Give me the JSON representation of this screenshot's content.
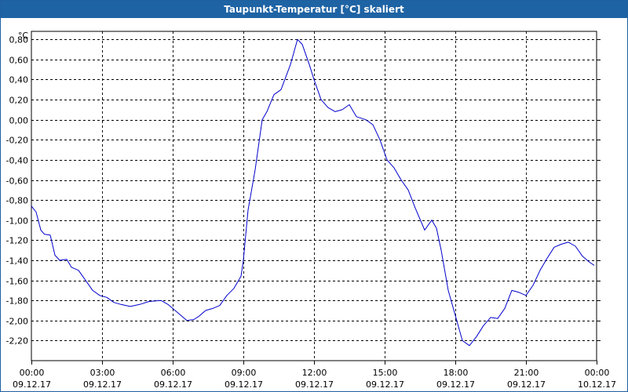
{
  "chart_data": {
    "type": "line",
    "title": "Taupunkt-Temperatur [°C] skaliert",
    "unit_label": "°C",
    "ylim": [
      -2.4,
      0.88
    ],
    "yticks": [
      0.8,
      0.6,
      0.4,
      0.2,
      0.0,
      -0.2,
      -0.4,
      -0.6,
      -0.8,
      -1.0,
      -1.2,
      -1.4,
      -1.6,
      -1.8,
      -2.0,
      -2.2
    ],
    "ytick_labels": [
      "0,80",
      "0,60",
      "0,40",
      "0,20",
      "0,00",
      "-0,20",
      "-0,40",
      "-0,60",
      "-0,80",
      "-1,00",
      "-1,20",
      "-1,40",
      "-1,60",
      "-1,80",
      "-2,00",
      "-2,20"
    ],
    "xlim": [
      0,
      24
    ],
    "xticks": [
      0,
      3,
      6,
      9,
      12,
      15,
      18,
      21,
      24
    ],
    "xtick_time_labels": [
      "00:00",
      "03:00",
      "06:00",
      "09:00",
      "12:00",
      "15:00",
      "18:00",
      "21:00",
      "00:00"
    ],
    "xtick_date_labels": [
      "09.12.17",
      "09.12.17",
      "09.12.17",
      "09.12.17",
      "09.12.17",
      "09.12.17",
      "09.12.17",
      "09.12.17",
      "10.12.17"
    ],
    "grid": true,
    "series": [
      {
        "color": "#0000cc",
        "x": [
          0,
          0.2,
          0.4,
          0.55,
          0.8,
          1.0,
          1.2,
          1.5,
          1.7,
          2.0,
          2.3,
          2.6,
          2.9,
          3.2,
          3.5,
          3.8,
          4.2,
          4.6,
          5.0,
          5.5,
          5.8,
          6.2,
          6.6,
          6.9,
          7.1,
          7.4,
          7.7,
          8.0,
          8.3,
          8.6,
          8.9,
          9.0,
          9.2,
          9.5,
          9.8,
          10.0,
          10.3,
          10.6,
          11.0,
          11.3,
          11.5,
          11.8,
          12.0,
          12.3,
          12.6,
          12.9,
          13.2,
          13.5,
          13.8,
          14.2,
          14.5,
          14.8,
          15.1,
          15.4,
          15.7,
          16.0,
          16.3,
          16.7,
          17.0,
          17.2,
          17.4,
          17.7,
          18.0,
          18.3,
          18.6,
          18.9,
          19.2,
          19.5,
          19.8,
          20.1,
          20.4,
          20.7,
          21.0,
          21.3,
          21.6,
          21.9,
          22.2,
          22.5,
          22.8,
          23.1,
          23.4,
          23.7,
          23.9
        ],
        "y": [
          -0.86,
          -0.92,
          -1.1,
          -1.14,
          -1.15,
          -1.35,
          -1.4,
          -1.39,
          -1.47,
          -1.5,
          -1.6,
          -1.7,
          -1.75,
          -1.77,
          -1.82,
          -1.84,
          -1.86,
          -1.84,
          -1.81,
          -1.8,
          -1.84,
          -1.92,
          -2.0,
          -1.99,
          -1.96,
          -1.9,
          -1.88,
          -1.85,
          -1.75,
          -1.68,
          -1.56,
          -1.4,
          -0.9,
          -0.5,
          0.0,
          0.08,
          0.25,
          0.3,
          0.55,
          0.8,
          0.75,
          0.55,
          0.4,
          0.2,
          0.12,
          0.08,
          0.1,
          0.15,
          0.03,
          0.0,
          -0.05,
          -0.2,
          -0.4,
          -0.48,
          -0.6,
          -0.7,
          -0.88,
          -1.1,
          -1.0,
          -1.08,
          -1.3,
          -1.7,
          -1.95,
          -2.2,
          -2.25,
          -2.16,
          -2.05,
          -1.97,
          -1.98,
          -1.88,
          -1.7,
          -1.72,
          -1.75,
          -1.65,
          -1.5,
          -1.38,
          -1.27,
          -1.24,
          -1.22,
          -1.26,
          -1.36,
          -1.42,
          -1.45
        ]
      }
    ]
  }
}
